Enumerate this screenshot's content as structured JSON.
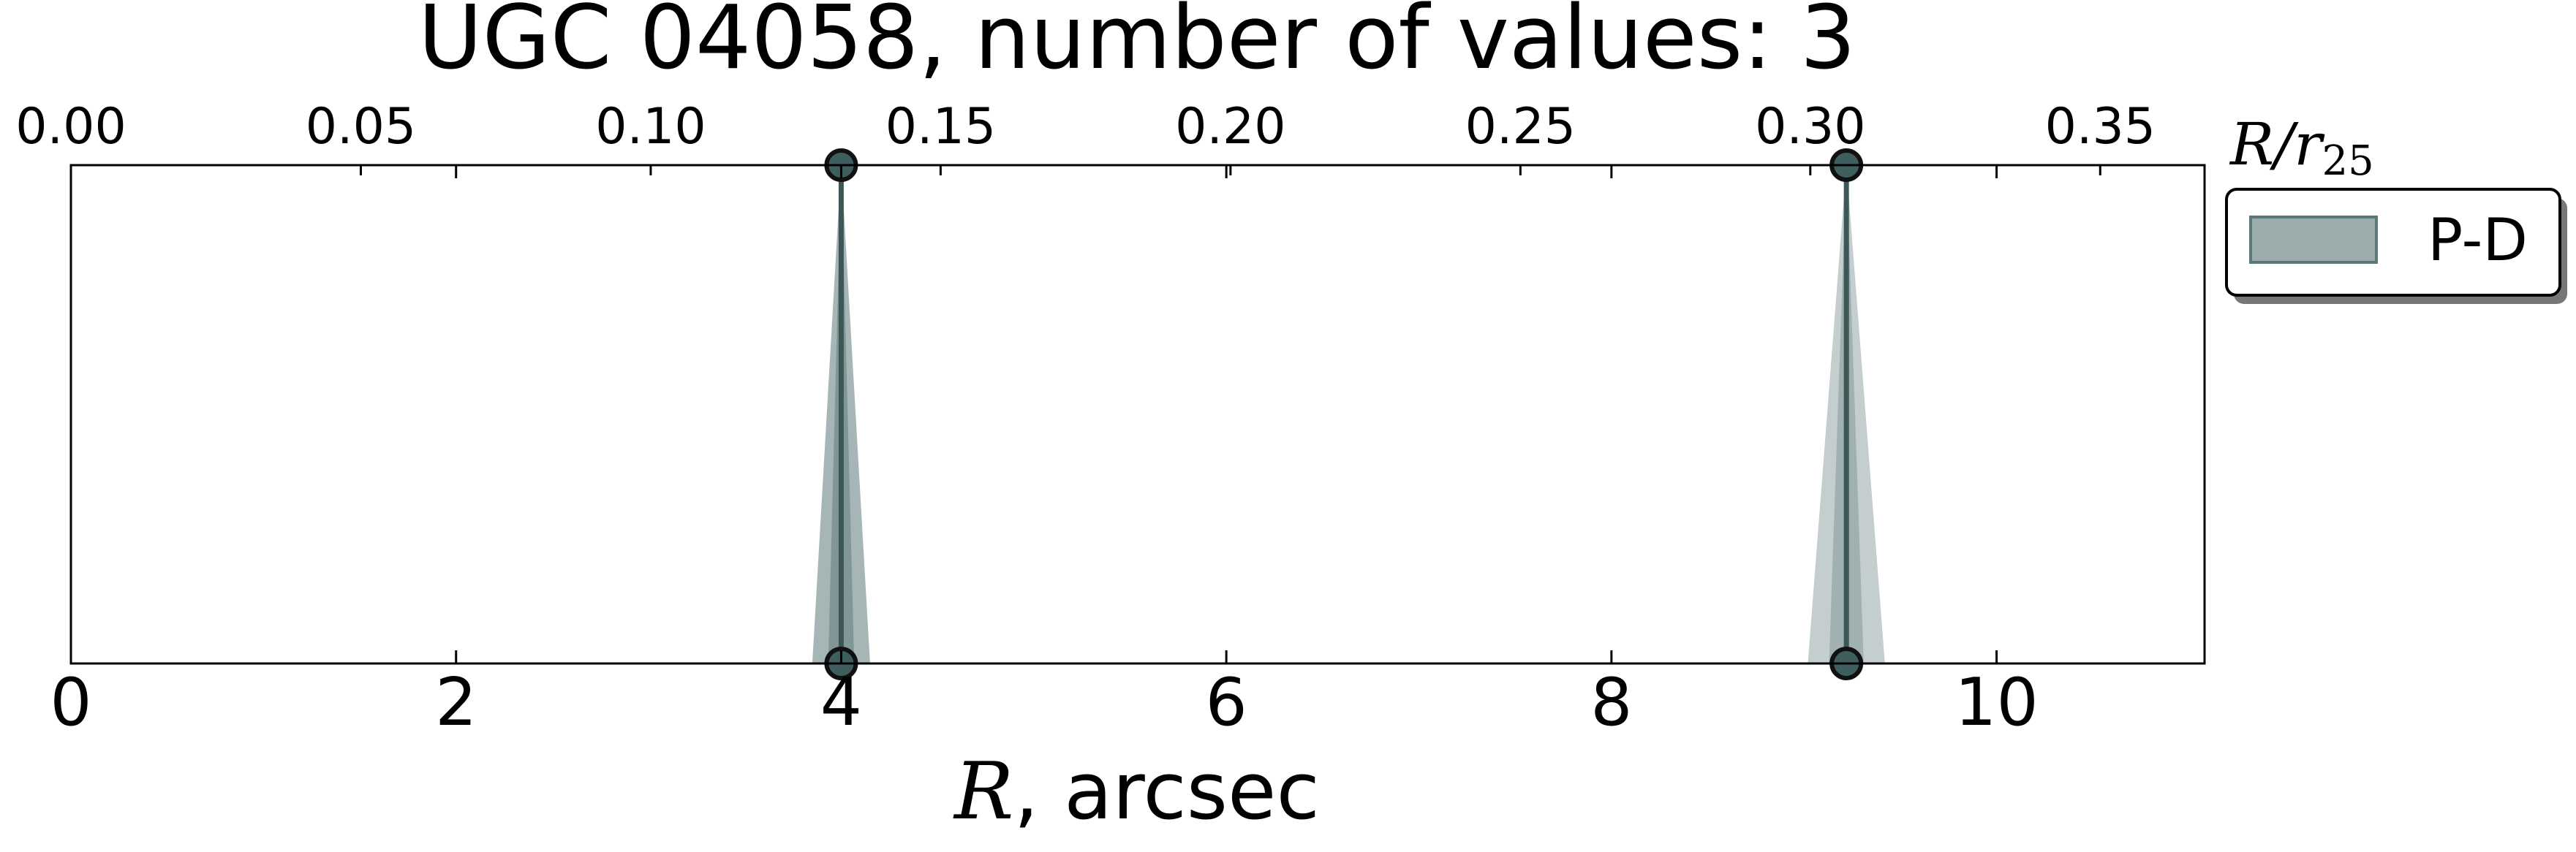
{
  "chart_data": {
    "type": "area",
    "title": "UGC 04058, number of values: 3",
    "xlabel_italic": "R",
    "xlabel_rest": ", arcsec",
    "top_axis_label_main": "R/r",
    "top_axis_label_sub": "25",
    "xlim": [
      0,
      11.08
    ],
    "ylim": [
      0,
      1
    ],
    "top_xlim": [
      0,
      0.368
    ],
    "bottom_ticks": [
      "0",
      "2",
      "4",
      "6",
      "8",
      "10"
    ],
    "bottom_tick_values": [
      0,
      2,
      4,
      6,
      8,
      10
    ],
    "top_ticks": [
      "0.00",
      "0.05",
      "0.10",
      "0.15",
      "0.20",
      "0.25",
      "0.30",
      "0.35"
    ],
    "top_tick_values": [
      0.0,
      0.05,
      0.1,
      0.15,
      0.2,
      0.25,
      0.3,
      0.35
    ],
    "series": [
      {
        "name": "P-D",
        "peaks": [
          {
            "x": 4.0,
            "half_width": 0.15,
            "alpha": 0.9
          },
          {
            "x": 9.22,
            "half_width": 0.2,
            "alpha": 0.6
          }
        ],
        "points": [
          {
            "x": 4.0,
            "y": 1
          },
          {
            "x": 4.0,
            "y": 0
          },
          {
            "x": 9.22,
            "y": 1
          },
          {
            "x": 9.22,
            "y": 0
          }
        ]
      }
    ],
    "legend": {
      "position": "outside-right-top",
      "entries": [
        "P-D"
      ]
    },
    "grid": false,
    "colors": {
      "fill": "#5b7777",
      "line": "#3d5757",
      "marker": "#3f5e5e"
    }
  }
}
